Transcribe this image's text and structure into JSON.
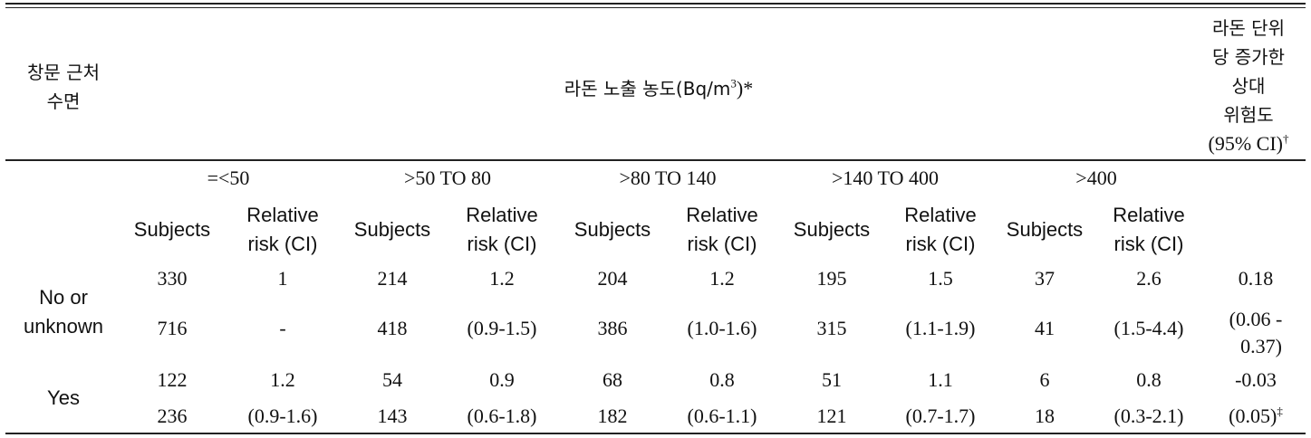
{
  "header": {
    "row_label": [
      "창문 근처",
      "수면"
    ],
    "exposure_title_main": "라돈 노출 농도(Bq/m",
    "exposure_title_sup": "3",
    "exposure_title_tail": ")*",
    "rr_col": [
      "라돈 단위",
      "당 증가한",
      "상대",
      "위험도",
      "(95% CI)"
    ],
    "rr_col_mark": "†"
  },
  "bands": [
    "=<50",
    ">50 TO 80",
    ">80 TO 140",
    ">140 TO 400",
    ">400"
  ],
  "sub_headers": {
    "subjects": "Subjects",
    "rr_line1": "Relative",
    "rr_line2": "risk (CI)"
  },
  "groups": [
    {
      "label": [
        "No or",
        "unknown"
      ],
      "row1": [
        "330",
        "1",
        "214",
        "1.2",
        "204",
        "1.2",
        "195",
        "1.5",
        "37",
        "2.6",
        "0.18"
      ],
      "row2": [
        "716",
        "-",
        "418",
        "(0.9-1.5)",
        "386",
        "(1.0-1.6)",
        "315",
        "(1.1-1.9)",
        "41",
        "(1.5-4.4)",
        "(0.06 -"
      ],
      "row3_last": "0.37)"
    },
    {
      "label": [
        "Yes"
      ],
      "row1": [
        "122",
        "1.2",
        "54",
        "0.9",
        "68",
        "0.8",
        "51",
        "1.1",
        "6",
        "0.8",
        "-0.03"
      ],
      "row2": [
        "236",
        "(0.9-1.6)",
        "143",
        "(0.6-1.8)",
        "182",
        "(0.6-1.1)",
        "121",
        "(0.7-1.7)",
        "18",
        "(0.3-2.1)",
        "(0.05)"
      ],
      "row2_last_mark": "‡"
    }
  ]
}
